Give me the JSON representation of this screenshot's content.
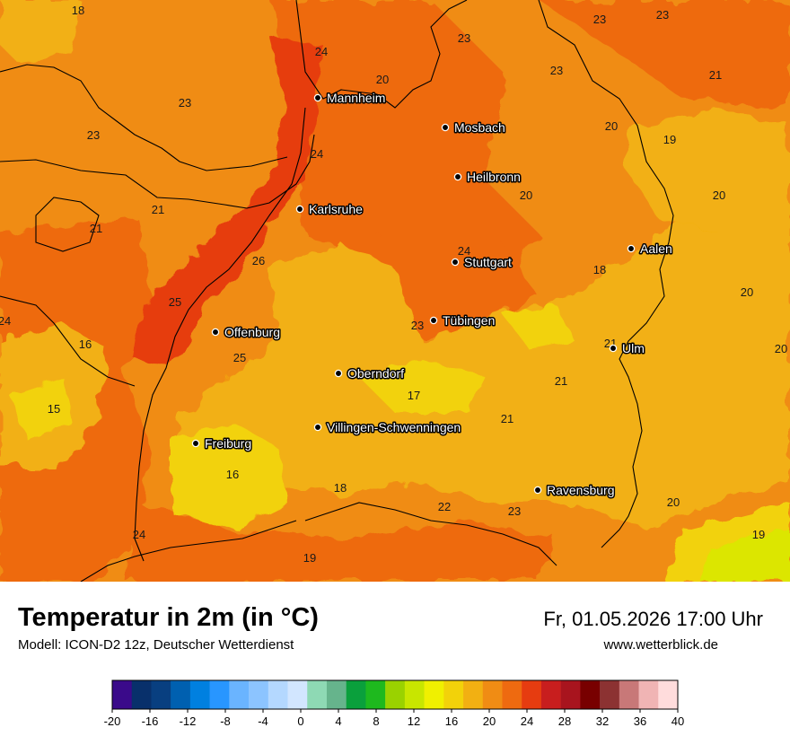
{
  "title": "Temperatur in 2m (in °C)",
  "model": "Modell: ICON-D2 12z, Deutscher Wetterdienst",
  "datetime": "Fr, 01.05.2026 17:00 Uhr",
  "website": "www.wetterblick.de",
  "colors": {
    "sea_orange": "#f08c14",
    "deep_orange": "#ee6a10",
    "red_orange": "#e63c10",
    "amber": "#f2b012",
    "yellow": "#f2d20a",
    "lime": "#dce600",
    "border": "#000000"
  },
  "cities": [
    {
      "name": "Mannheim"
    },
    {
      "name": "Mosbach"
    },
    {
      "name": "Heilbronn"
    },
    {
      "name": "Karlsruhe"
    },
    {
      "name": "Stuttgart"
    },
    {
      "name": "Aalen"
    },
    {
      "name": "Tübingen"
    },
    {
      "name": "Offenburg"
    },
    {
      "name": "Ulm"
    },
    {
      "name": "Oberndorf"
    },
    {
      "name": "Villingen-Schwenningen"
    },
    {
      "name": "Freiburg"
    },
    {
      "name": "Ravensburg"
    }
  ],
  "values": [
    "18",
    "23",
    "23",
    "23",
    "24",
    "20",
    "23",
    "21",
    "23",
    "23",
    "20",
    "19",
    "24",
    "21",
    "21",
    "20",
    "20",
    "24",
    "26",
    "18",
    "20",
    "25",
    "24",
    "16",
    "23",
    "25",
    "15",
    "21",
    "20",
    "17",
    "21",
    "16",
    "18",
    "22",
    "23",
    "20",
    "24",
    "19",
    "19",
    "21"
  ],
  "legend": {
    "colors": [
      "#3a0a8a",
      "#08306b",
      "#083f80",
      "#0060b0",
      "#0080e0",
      "#2896ff",
      "#6ab4ff",
      "#8cc4ff",
      "#b4d8ff",
      "#d2e6ff",
      "#8ed9b4",
      "#66b48c",
      "#0aa03c",
      "#1eb91e",
      "#9ad200",
      "#c8e600",
      "#f0f000",
      "#f2d20a",
      "#f2b012",
      "#f08c14",
      "#ee6a10",
      "#e63c10",
      "#c81e1e",
      "#a8141e",
      "#780000",
      "#8c3232",
      "#c87878",
      "#f0b4b4",
      "#ffdcdc"
    ],
    "ticks": [
      "-20",
      "-16",
      "-12",
      "-8",
      "-4",
      "0",
      "4",
      "8",
      "12",
      "16",
      "20",
      "24",
      "28",
      "32",
      "36",
      "40"
    ]
  }
}
